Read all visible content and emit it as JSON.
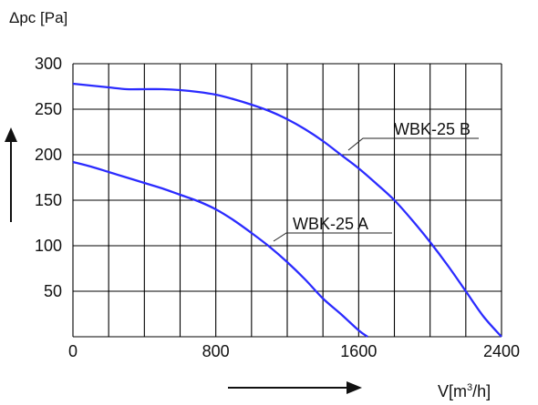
{
  "chart_data": {
    "type": "line",
    "ylabel": "Δpc [Pa]",
    "xlabel_prefix": "V[m",
    "xlabel_sup": "3",
    "xlabel_suffix": "/h]",
    "xlim": [
      0,
      2400
    ],
    "ylim": [
      0,
      300
    ],
    "x_ticks": [
      0,
      800,
      1600,
      2400
    ],
    "y_ticks": [
      50,
      100,
      150,
      200,
      250,
      300
    ],
    "x_tick_labels": [
      "0",
      "800",
      "1600",
      "2400"
    ],
    "y_tick_labels": [
      "50",
      "100",
      "150",
      "200",
      "250",
      "300"
    ],
    "grid": true,
    "x_grid_step": 200,
    "y_grid_step": 50,
    "series_color": "#2b2bff",
    "series": [
      {
        "name": "WBK-25 B",
        "x": [
          0,
          100,
          200,
          300,
          400,
          500,
          600,
          700,
          800,
          900,
          1000,
          1100,
          1200,
          1300,
          1400,
          1500,
          1600,
          1700,
          1800,
          1900,
          2000,
          2100,
          2200,
          2300,
          2400
        ],
        "values": [
          278,
          276,
          274,
          272,
          272,
          272,
          271,
          269,
          266,
          261,
          255,
          248,
          239,
          228,
          215,
          200,
          185,
          168,
          150,
          128,
          104,
          78,
          50,
          22,
          0
        ]
      },
      {
        "name": "WBK-25 A",
        "x": [
          0,
          100,
          200,
          300,
          400,
          500,
          600,
          700,
          800,
          900,
          1000,
          1100,
          1200,
          1300,
          1400,
          1500,
          1600,
          1650
        ],
        "values": [
          192,
          187,
          181,
          175,
          169,
          163,
          156,
          149,
          140,
          128,
          114,
          99,
          82,
          63,
          42,
          25,
          7,
          0
        ]
      }
    ]
  }
}
